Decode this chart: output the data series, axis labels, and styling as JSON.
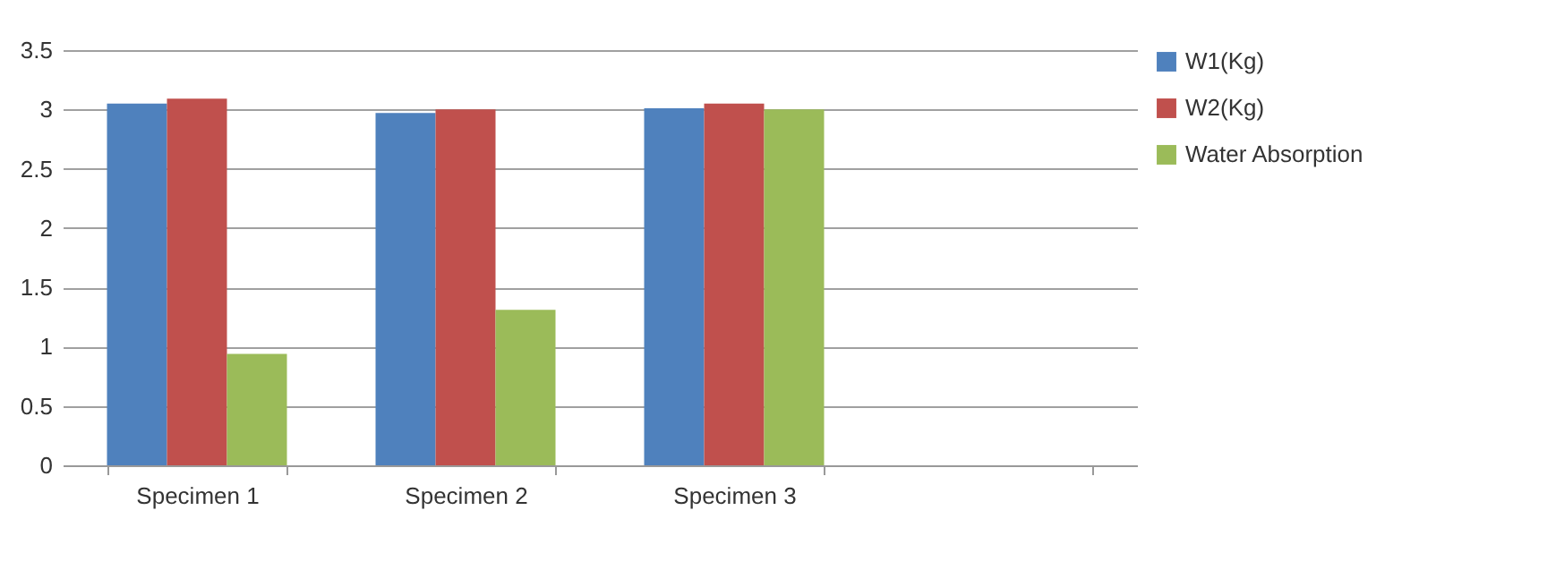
{
  "chart_data": {
    "type": "bar",
    "categories": [
      "Specimen 1",
      "Specimen 2",
      "Specimen 3",
      null
    ],
    "series": [
      {
        "name": "W1(Kg)",
        "color": "#4f81bd",
        "values": [
          3.05,
          2.97,
          3.01,
          null
        ]
      },
      {
        "name": "W2(Kg)",
        "color": "#c0504d",
        "values": [
          3.09,
          3.0,
          3.05,
          null
        ]
      },
      {
        "name": "Water Absorption",
        "color": "#9bbb59",
        "values": [
          0.94,
          1.31,
          3.0,
          null
        ]
      }
    ],
    "ylim": [
      0,
      3.5
    ],
    "yticks": [
      0,
      0.5,
      1,
      1.5,
      2,
      2.5,
      3,
      3.5
    ],
    "grid": "y",
    "legend": "right"
  }
}
